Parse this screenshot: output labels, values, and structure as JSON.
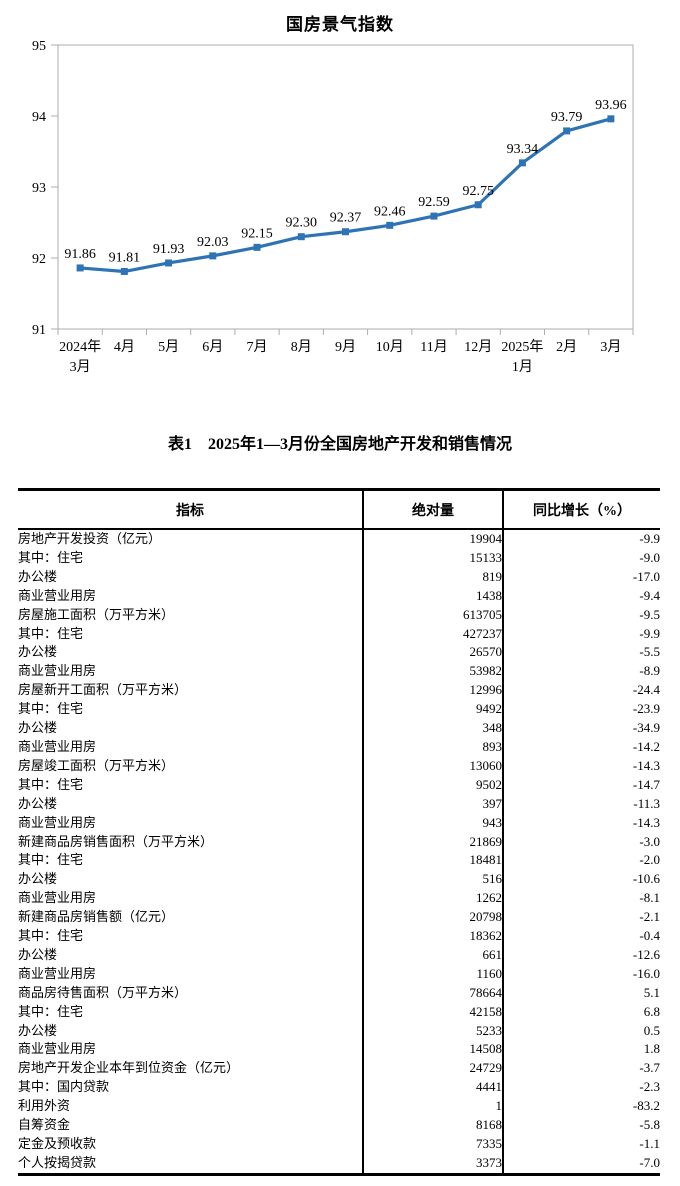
{
  "chart_data": {
    "type": "line",
    "title": "国房景气指数",
    "x_labels": [
      "2024年\n3月",
      "4月",
      "5月",
      "6月",
      "7月",
      "8月",
      "9月",
      "10月",
      "11月",
      "12月",
      "2025年\n1月",
      "2月",
      "3月"
    ],
    "values": [
      91.86,
      91.81,
      91.93,
      92.03,
      92.15,
      92.3,
      92.37,
      92.46,
      92.59,
      92.75,
      93.34,
      93.79,
      93.96
    ],
    "ylim": [
      91,
      95
    ],
    "y_ticks": [
      95,
      94,
      93,
      92,
      91
    ],
    "xlabel": "",
    "ylabel": "",
    "grid": false,
    "legend_position": "none",
    "marker": "square",
    "data_labels": true,
    "line_color": "#2E74B5",
    "axis_color": "#ADADAD",
    "label_color": "#000000"
  },
  "table": {
    "title": "表1　2025年1—3月份全国房地产开发和销售情况",
    "headers": [
      "指标",
      "绝对量",
      "同比增长（%）"
    ],
    "rows": [
      {
        "indicator": "房地产开发投资（亿元）",
        "indent": 0,
        "absolute": "19904",
        "growth": "-9.9"
      },
      {
        "indicator": "其中：住宅",
        "indent": 1,
        "absolute": "15133",
        "growth": "-9.0"
      },
      {
        "indicator": "办公楼",
        "indent": 2,
        "absolute": "819",
        "growth": "-17.0"
      },
      {
        "indicator": "商业营业用房",
        "indent": 2,
        "absolute": "1438",
        "growth": "-9.4"
      },
      {
        "indicator": "房屋施工面积（万平方米）",
        "indent": 0,
        "absolute": "613705",
        "growth": "-9.5"
      },
      {
        "indicator": "其中：住宅",
        "indent": 1,
        "absolute": "427237",
        "growth": "-9.9"
      },
      {
        "indicator": "办公楼",
        "indent": 2,
        "absolute": "26570",
        "growth": "-5.5"
      },
      {
        "indicator": "商业营业用房",
        "indent": 2,
        "absolute": "53982",
        "growth": "-8.9"
      },
      {
        "indicator": "房屋新开工面积（万平方米）",
        "indent": 0,
        "absolute": "12996",
        "growth": "-24.4"
      },
      {
        "indicator": "其中：住宅",
        "indent": 1,
        "absolute": "9492",
        "growth": "-23.9"
      },
      {
        "indicator": "办公楼",
        "indent": 2,
        "absolute": "348",
        "growth": "-34.9"
      },
      {
        "indicator": "商业营业用房",
        "indent": 2,
        "absolute": "893",
        "growth": "-14.2"
      },
      {
        "indicator": "房屋竣工面积（万平方米）",
        "indent": 0,
        "absolute": "13060",
        "growth": "-14.3"
      },
      {
        "indicator": "其中：住宅",
        "indent": 1,
        "absolute": "9502",
        "growth": "-14.7"
      },
      {
        "indicator": "办公楼",
        "indent": 2,
        "absolute": "397",
        "growth": "-11.3"
      },
      {
        "indicator": "商业营业用房",
        "indent": 2,
        "absolute": "943",
        "growth": "-14.3"
      },
      {
        "indicator": "新建商品房销售面积（万平方米）",
        "indent": 0,
        "absolute": "21869",
        "growth": "-3.0"
      },
      {
        "indicator": "其中：住宅",
        "indent": 1,
        "absolute": "18481",
        "growth": "-2.0"
      },
      {
        "indicator": "办公楼",
        "indent": 2,
        "absolute": "516",
        "growth": "-10.6"
      },
      {
        "indicator": "商业营业用房",
        "indent": 2,
        "absolute": "1262",
        "growth": "-8.1"
      },
      {
        "indicator": "新建商品房销售额（亿元）",
        "indent": 0,
        "absolute": "20798",
        "growth": "-2.1"
      },
      {
        "indicator": "其中：住宅",
        "indent": 1,
        "absolute": "18362",
        "growth": "-0.4"
      },
      {
        "indicator": "办公楼",
        "indent": 2,
        "absolute": "661",
        "growth": "-12.6"
      },
      {
        "indicator": "商业营业用房",
        "indent": 2,
        "absolute": "1160",
        "growth": "-16.0"
      },
      {
        "indicator": "商品房待售面积（万平方米）",
        "indent": 0,
        "absolute": "78664",
        "growth": "5.1"
      },
      {
        "indicator": "其中：住宅",
        "indent": 1,
        "absolute": "42158",
        "growth": "6.8"
      },
      {
        "indicator": "办公楼",
        "indent": 2,
        "absolute": "5233",
        "growth": "0.5"
      },
      {
        "indicator": "商业营业用房",
        "indent": 2,
        "absolute": "14508",
        "growth": "1.8"
      },
      {
        "indicator": "房地产开发企业本年到位资金（亿元）",
        "indent": 0,
        "absolute": "24729",
        "growth": "-3.7"
      },
      {
        "indicator": "其中：国内贷款",
        "indent": 1,
        "absolute": "4441",
        "growth": "-2.3"
      },
      {
        "indicator": "利用外资",
        "indent": 2,
        "absolute": "1",
        "growth": "-83.2"
      },
      {
        "indicator": "自筹资金",
        "indent": 2,
        "absolute": "8168",
        "growth": "-5.8"
      },
      {
        "indicator": "定金及预收款",
        "indent": 2,
        "absolute": "7335",
        "growth": "-1.1"
      },
      {
        "indicator": "个人按揭贷款",
        "indent": 2,
        "absolute": "3373",
        "growth": "-7.0"
      }
    ]
  }
}
